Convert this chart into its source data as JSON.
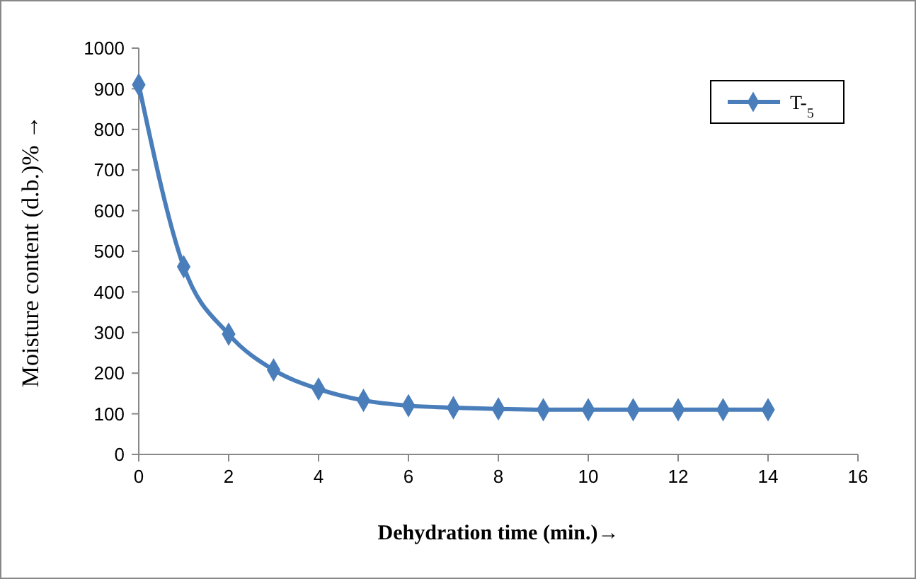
{
  "chart_data": {
    "type": "line",
    "xlabel": "Dehydration time (min.)→",
    "ylabel": "Moisture content  (d.b.)% →",
    "x": [
      0,
      1,
      2,
      3,
      4,
      5,
      6,
      7,
      8,
      9,
      10,
      11,
      12,
      13,
      14
    ],
    "series": [
      {
        "name": "T-$_{5}$",
        "color": "#4a7ebb",
        "values": [
          910,
          462,
          296,
          208,
          161,
          133,
          120,
          115,
          112,
          110,
          110,
          110,
          110,
          110,
          110
        ]
      }
    ],
    "xlim": [
      0,
      16
    ],
    "xticks": [
      0,
      2,
      4,
      6,
      8,
      10,
      12,
      14,
      16
    ],
    "ylim": [
      0,
      1000
    ],
    "yticks": [
      0,
      100,
      200,
      300,
      400,
      500,
      600,
      700,
      800,
      900,
      1000
    ],
    "grid": false,
    "legend": "top right",
    "marker": "diamond",
    "line_style": "solid"
  }
}
